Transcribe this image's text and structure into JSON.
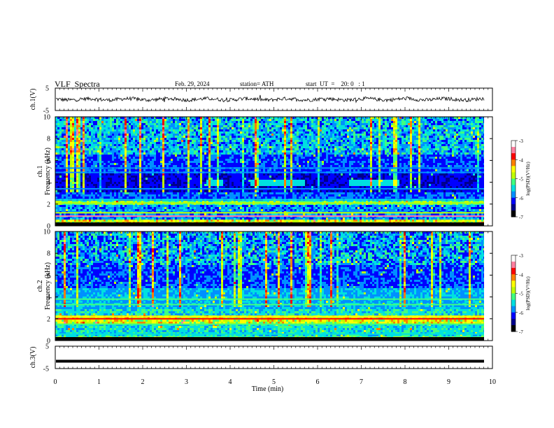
{
  "header": {
    "title": "VLF  Spectra",
    "date": "Feb. 29, 2024",
    "station": "station= ATH",
    "start": "start  UT  =    20: 0   : 1"
  },
  "chart_data": [
    {
      "type": "line",
      "panel": "ch1-waveform",
      "ylabel": "ch.1(V)",
      "ylim": [
        -5,
        5
      ],
      "yticks": [
        "5",
        "-5"
      ],
      "xlim": [
        0,
        10
      ],
      "series": [
        {
          "values_desc": "noisy trace near 0 V",
          "level": 0,
          "color": "#000000"
        }
      ]
    },
    {
      "type": "heatmap",
      "panel": "ch1-spectrogram",
      "ylabel": "ch.1\nFrequency  (kHz)",
      "ylim": [
        0,
        10
      ],
      "yticks": [
        "0",
        "2",
        "4",
        "6",
        "8",
        "10"
      ],
      "xlim": [
        0,
        10
      ],
      "colorbar": {
        "label": "log(PSD)(V²/Hz)",
        "range": [
          -7,
          -3
        ],
        "ticks": [
          "-3",
          "-4",
          "-5",
          "-6",
          "-7"
        ]
      }
    },
    {
      "type": "heatmap",
      "panel": "ch2-spectrogram",
      "ylabel": "ch.2\nFrequency  (kHz)",
      "ylim": [
        0,
        10
      ],
      "yticks": [
        "0",
        "2",
        "4",
        "6",
        "8",
        "10"
      ],
      "xlim": [
        0,
        10
      ],
      "colorbar": {
        "label": "log(PSD)(V²/Hz)",
        "range": [
          -7,
          -3
        ],
        "ticks": [
          "-3",
          "-4",
          "-5",
          "-6",
          "-7"
        ]
      }
    },
    {
      "type": "line",
      "panel": "ch3-waveform",
      "ylabel": "ch.3(V)",
      "ylim": [
        -5,
        5
      ],
      "yticks": [
        "5",
        "-5"
      ],
      "xlim": [
        0,
        10
      ],
      "xticks": [
        "0",
        "1",
        "2",
        "3",
        "4",
        "5",
        "6",
        "7",
        "8",
        "9",
        "10"
      ],
      "xlabel": "Time  (min)",
      "series": [
        {
          "values_desc": "flat thick line",
          "level": -1.7,
          "color": "#000000"
        }
      ]
    }
  ],
  "colormap": [
    "#000000",
    "#00008c",
    "#0000ff",
    "#0090ff",
    "#00e0e0",
    "#40ff80",
    "#c0ff00",
    "#ffff00",
    "#ff8000",
    "#ff0000",
    "#ff80a0",
    "#ffffff"
  ]
}
